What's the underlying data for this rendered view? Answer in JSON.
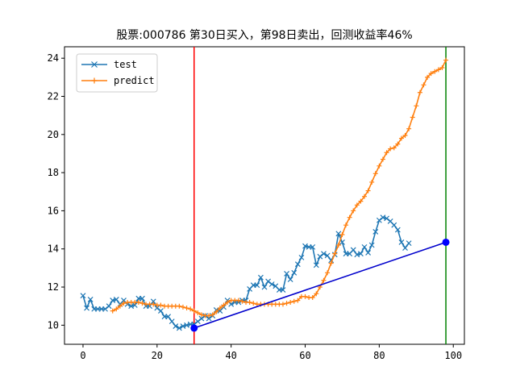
{
  "chart_data": {
    "type": "line",
    "title": "股票:000786 第30日买入，第98日卖出，回测收益率46%",
    "xlabel": "",
    "ylabel": "",
    "xlim": [
      -5,
      103
    ],
    "ylim": [
      9.0,
      24.6
    ],
    "x_ticks": [
      0,
      20,
      40,
      60,
      80,
      100
    ],
    "y_ticks": [
      10,
      12,
      14,
      16,
      18,
      20,
      22,
      24
    ],
    "legend_position": "upper-left",
    "grid": false,
    "series": [
      {
        "name": "test",
        "color": "#1f77b4",
        "marker": "x",
        "values": [
          11.55,
          10.9,
          11.35,
          10.85,
          10.85,
          10.85,
          10.85,
          11.0,
          11.3,
          11.35,
          11.1,
          11.3,
          11.1,
          11.0,
          11.05,
          11.4,
          11.4,
          11.0,
          11.0,
          11.25,
          10.9,
          10.75,
          10.45,
          10.45,
          10.2,
          9.95,
          9.85,
          9.95,
          10.0,
          10.05,
          10.05,
          10.2,
          10.35,
          10.5,
          10.35,
          10.5,
          10.8,
          10.75,
          10.95,
          11.3,
          11.1,
          11.2,
          11.2,
          11.3,
          11.3,
          11.9,
          12.1,
          12.1,
          12.5,
          12.0,
          12.3,
          12.15,
          12.05,
          11.85,
          11.85,
          12.7,
          12.4,
          12.75,
          13.2,
          13.55,
          14.15,
          14.1,
          14.1,
          13.15,
          13.6,
          13.75,
          13.65,
          13.4,
          13.7,
          14.8,
          14.35,
          13.75,
          13.75,
          13.95,
          13.7,
          13.75,
          14.1,
          13.8,
          14.2,
          14.9,
          15.5,
          15.65,
          15.6,
          15.45,
          15.25,
          15.0,
          14.35,
          14.05,
          14.3
        ]
      },
      {
        "name": "predict",
        "color": "#ff7f0e",
        "marker": "+",
        "values": [
          10.75,
          10.85,
          11.0,
          11.15,
          11.2,
          11.2,
          11.2,
          11.2,
          11.15,
          11.1,
          11.1,
          11.1,
          11.05,
          11.05,
          11.0,
          11.0,
          11.0,
          11.0,
          11.0,
          10.95,
          10.9,
          10.85,
          10.75,
          10.65,
          10.55,
          10.5,
          10.5,
          10.55,
          10.7,
          10.9,
          11.05,
          11.2,
          11.3,
          11.3,
          11.3,
          11.25,
          11.2,
          11.2,
          11.15,
          11.1,
          11.1,
          11.1,
          11.1,
          11.1,
          11.1,
          11.1,
          11.1,
          11.15,
          11.2,
          11.25,
          11.3,
          11.5,
          11.5,
          11.45,
          11.45,
          11.65,
          12.0,
          12.35,
          12.75,
          13.25,
          13.75,
          14.2,
          14.75,
          15.25,
          15.65,
          16.0,
          16.3,
          16.5,
          16.75,
          17.05,
          17.5,
          17.95,
          18.35,
          18.7,
          19.05,
          19.25,
          19.3,
          19.5,
          19.8,
          19.95,
          20.3,
          20.9,
          21.5,
          22.2,
          22.6,
          23.0,
          23.2,
          23.3,
          23.4,
          23.5,
          23.9
        ]
      }
    ],
    "x_offset": 8,
    "buy_day": 30,
    "sell_day": 98,
    "buy_price": 9.85,
    "sell_price": 14.35,
    "colors": {
      "buy_line": "#ff0000",
      "sell_line": "#008000",
      "trade_line": "#0000cc",
      "trade_marker": "#0000ff"
    }
  }
}
